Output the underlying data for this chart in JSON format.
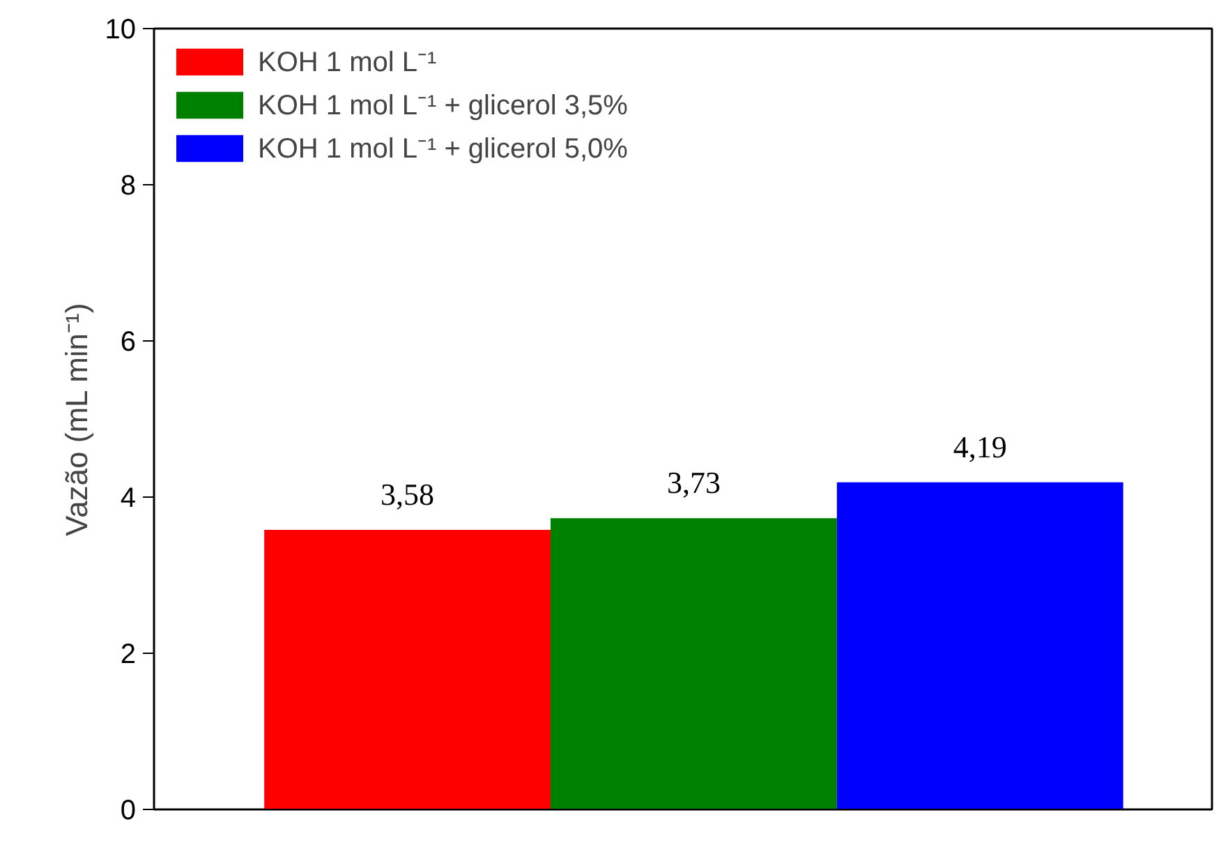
{
  "chart_data": {
    "type": "bar",
    "ylabel": "Vazão (mL min⁻¹)",
    "categories": [
      null,
      null,
      null
    ],
    "series": [
      {
        "name": "KOH 1 mol L⁻¹",
        "color": "#ff0000",
        "values": [
          3.58,
          null,
          null
        ],
        "value_labels": [
          "3,58",
          null,
          null
        ]
      },
      {
        "name": "KOH 1 mol L⁻¹ + glicerol 3,5%",
        "color": "#008000",
        "values": [
          null,
          3.73,
          null
        ],
        "value_labels": [
          null,
          "3,73",
          null
        ]
      },
      {
        "name": "KOH 1 mol L⁻¹ + glicerol 5,0%",
        "color": "#0000ff",
        "values": [
          null,
          null,
          4.19
        ],
        "value_labels": [
          null,
          null,
          "4,19"
        ]
      }
    ],
    "ylim": [
      0,
      10
    ],
    "yticks": [
      0,
      2,
      4,
      6,
      8,
      10
    ],
    "grid": false,
    "legend": "top left",
    "tick_labels": "y"
  }
}
